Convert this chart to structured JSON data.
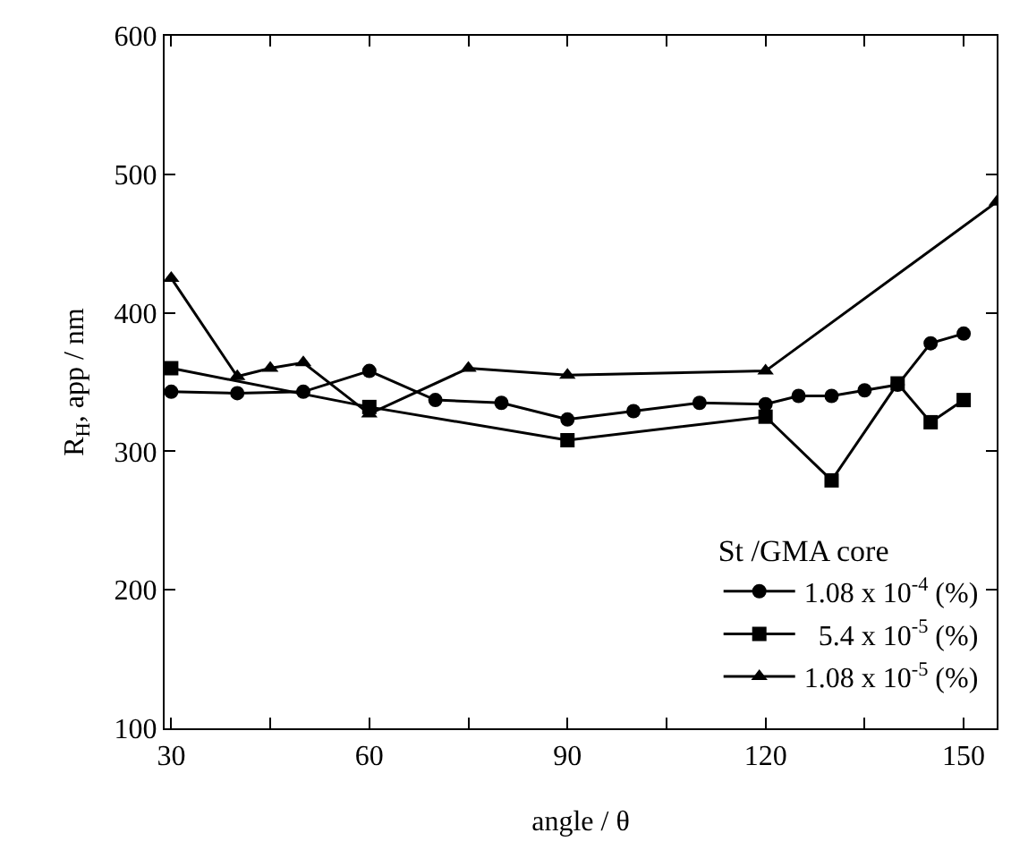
{
  "chart_data": {
    "type": "line",
    "xlabel": "angle / θ",
    "ylabel": "R$_{H}$, app / nm",
    "legend_title": "St /GMA core",
    "legend": "bottom right",
    "xlim": [
      29,
      155
    ],
    "xticks": [
      30,
      {
        "value": 45,
        "label": null
      },
      60,
      {
        "value": 75,
        "label": null
      },
      90,
      {
        "value": 105,
        "label": null
      },
      120,
      {
        "value": 135,
        "label": null
      },
      150
    ],
    "ylim": [
      100,
      600
    ],
    "yticks": [
      100,
      200,
      300,
      400,
      500,
      600
    ],
    "series": [
      {
        "name": "1.08 x 10$^{-4}$ (%)",
        "color": "#000000",
        "marker": "circle",
        "x": [
          30,
          40,
          50,
          60,
          70,
          80,
          90,
          100,
          110,
          120,
          125,
          130,
          135,
          140,
          145,
          150
        ],
        "values": [
          343,
          342,
          343,
          358,
          337,
          335,
          323,
          329,
          335,
          334,
          340,
          340,
          344,
          348,
          378,
          385
        ]
      },
      {
        "name": "  5.4 x 10$^{-5}$ (%)",
        "color": "#000000",
        "marker": "square",
        "x": [
          30,
          60,
          90,
          120,
          130,
          140,
          145,
          150
        ],
        "values": [
          360,
          332,
          308,
          325,
          279,
          349,
          321,
          337
        ]
      },
      {
        "name": "1.08 x 10$^{-5}$ (%)",
        "color": "#000000",
        "marker": "triangle",
        "x": [
          30,
          40,
          45,
          50,
          60,
          75,
          90,
          120,
          155
        ],
        "values": [
          425,
          354,
          360,
          364,
          327,
          360,
          355,
          358,
          480
        ]
      }
    ]
  }
}
